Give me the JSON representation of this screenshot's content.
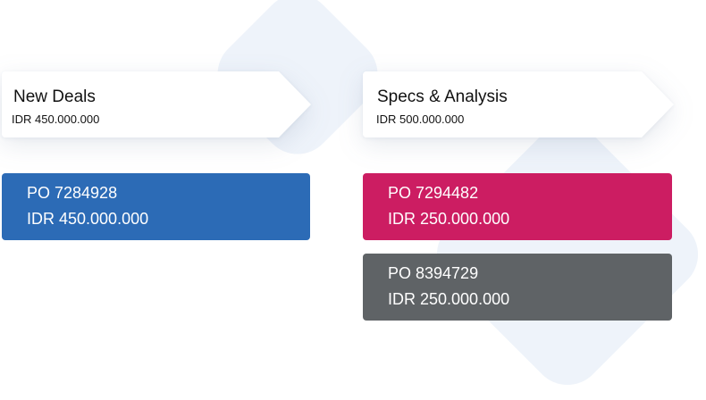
{
  "theme": {
    "background": "#ffffff",
    "decoration": "#eef3fa",
    "card_background": "#ffffff"
  },
  "stages": [
    {
      "title": "New Deals",
      "amount": "IDR 450.000.000"
    },
    {
      "title": "Specs & Analysis",
      "amount": "IDR 500.000.000"
    }
  ],
  "deals": [
    {
      "po": "PO 7284928",
      "amount": "IDR 450.000.000",
      "color": "#2c6bb6"
    },
    {
      "po": "PO 7294482",
      "amount": "IDR 250.000.000",
      "color": "#cc1d62"
    },
    {
      "po": "PO 8394729",
      "amount": "IDR 250.000.000",
      "color": "#5f6366"
    }
  ]
}
